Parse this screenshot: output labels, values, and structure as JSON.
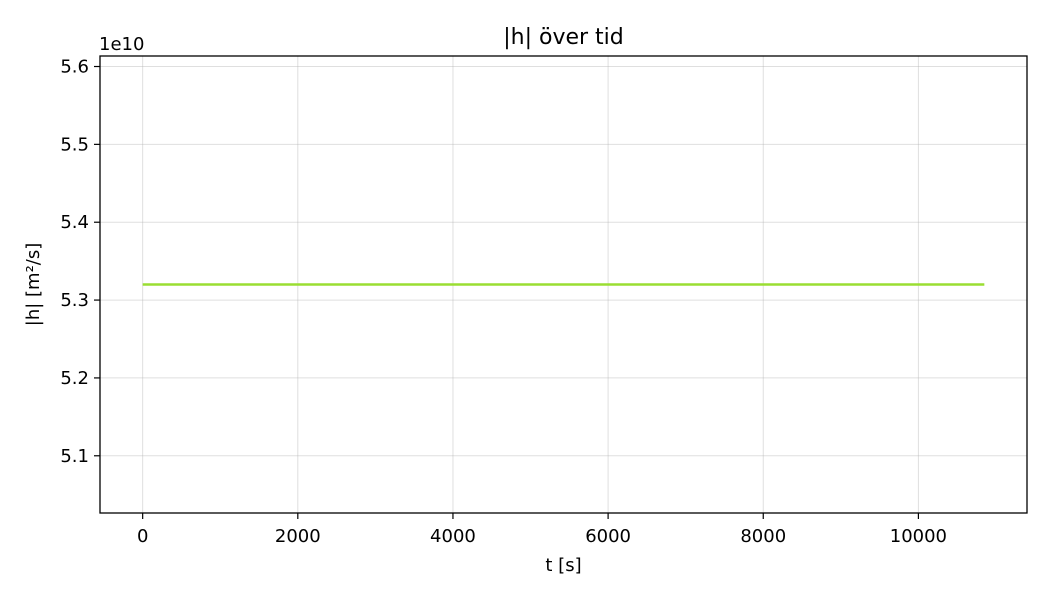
{
  "chart_data": {
    "type": "line",
    "title": "|h| över tid",
    "xlabel": "t [s]",
    "ylabel": "|h| [m²/s]",
    "y_offset_text": "1e10",
    "y_scale_factor": 10000000000,
    "xlim": [
      -550,
      11400
    ],
    "ylim": [
      5.0265,
      5.6135
    ],
    "x_ticks": [
      0,
      2000,
      4000,
      6000,
      8000,
      10000
    ],
    "x_tick_labels": [
      "0",
      "2000",
      "4000",
      "6000",
      "8000",
      "10000"
    ],
    "y_ticks": [
      5.1,
      5.2,
      5.3,
      5.4,
      5.5,
      5.6
    ],
    "y_tick_labels": [
      "5.1",
      "5.2",
      "5.3",
      "5.4",
      "5.5",
      "5.6"
    ],
    "grid": true,
    "series": [
      {
        "color": "#9ade32",
        "x": [
          0,
          10850
        ],
        "y": [
          5.32,
          5.32
        ]
      }
    ]
  }
}
